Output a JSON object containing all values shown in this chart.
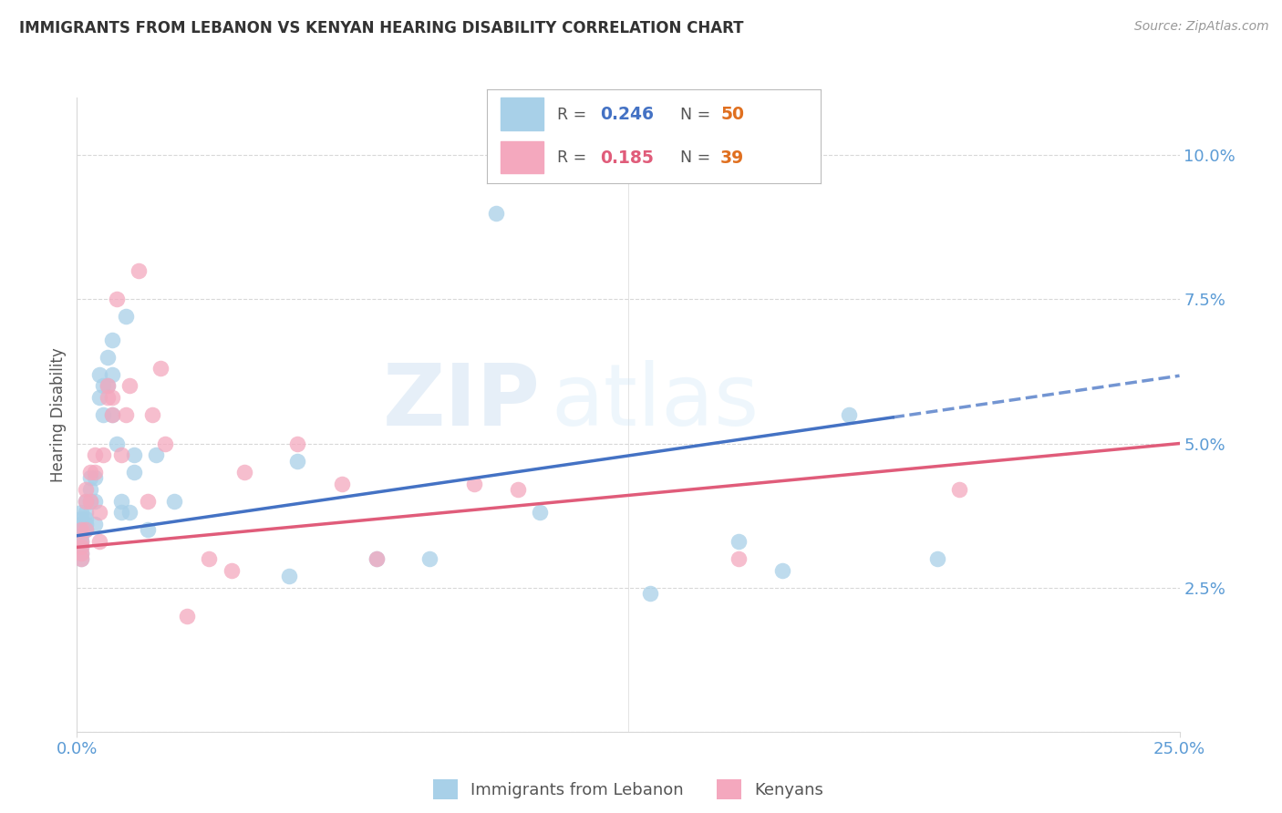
{
  "title": "IMMIGRANTS FROM LEBANON VS KENYAN HEARING DISABILITY CORRELATION CHART",
  "source": "Source: ZipAtlas.com",
  "ylabel": "Hearing Disability",
  "xlim": [
    0.0,
    0.25
  ],
  "ylim": [
    0.0,
    0.11
  ],
  "color_blue": "#a8d0e8",
  "color_pink": "#f4a8be",
  "color_blue_line": "#4472c4",
  "color_pink_line": "#e05c7a",
  "color_axis_labels": "#5b9bd5",
  "color_grid": "#d8d8d8",
  "watermark_line1": "ZIP",
  "watermark_line2": "atlas",
  "R_lebanon": "0.246",
  "N_lebanon": "50",
  "R_kenyan": "0.185",
  "N_kenyan": "39",
  "legend_bottom_label1": "Immigrants from Lebanon",
  "legend_bottom_label2": "Kenyans",
  "y_ticks": [
    0.0,
    0.025,
    0.05,
    0.075,
    0.1
  ],
  "y_tick_labels": [
    "",
    "2.5%",
    "5.0%",
    "7.5%",
    "10.0%"
  ],
  "x_tick_left": "0.0%",
  "x_tick_right": "25.0%",
  "lebanon_x": [
    0.001,
    0.001,
    0.001,
    0.001,
    0.001,
    0.001,
    0.001,
    0.001,
    0.001,
    0.002,
    0.002,
    0.002,
    0.002,
    0.002,
    0.003,
    0.003,
    0.003,
    0.004,
    0.004,
    0.004,
    0.005,
    0.005,
    0.006,
    0.006,
    0.007,
    0.007,
    0.008,
    0.008,
    0.008,
    0.009,
    0.01,
    0.01,
    0.011,
    0.012,
    0.013,
    0.013,
    0.016,
    0.018,
    0.022,
    0.05,
    0.08,
    0.095,
    0.105,
    0.15,
    0.16,
    0.175,
    0.195,
    0.13,
    0.068,
    0.048
  ],
  "lebanon_y": [
    0.035,
    0.034,
    0.033,
    0.032,
    0.031,
    0.036,
    0.037,
    0.038,
    0.03,
    0.036,
    0.035,
    0.037,
    0.038,
    0.04,
    0.044,
    0.042,
    0.04,
    0.036,
    0.04,
    0.044,
    0.058,
    0.062,
    0.055,
    0.06,
    0.06,
    0.065,
    0.055,
    0.062,
    0.068,
    0.05,
    0.04,
    0.038,
    0.072,
    0.038,
    0.048,
    0.045,
    0.035,
    0.048,
    0.04,
    0.047,
    0.03,
    0.09,
    0.038,
    0.033,
    0.028,
    0.055,
    0.03,
    0.024,
    0.03,
    0.027
  ],
  "kenyan_x": [
    0.001,
    0.001,
    0.001,
    0.001,
    0.001,
    0.002,
    0.002,
    0.002,
    0.003,
    0.003,
    0.004,
    0.004,
    0.005,
    0.005,
    0.006,
    0.007,
    0.007,
    0.008,
    0.008,
    0.009,
    0.01,
    0.011,
    0.012,
    0.014,
    0.016,
    0.017,
    0.019,
    0.02,
    0.025,
    0.03,
    0.038,
    0.05,
    0.06,
    0.09,
    0.1,
    0.15,
    0.2,
    0.068,
    0.035
  ],
  "kenyan_y": [
    0.033,
    0.032,
    0.031,
    0.035,
    0.03,
    0.04,
    0.042,
    0.035,
    0.045,
    0.04,
    0.045,
    0.048,
    0.038,
    0.033,
    0.048,
    0.058,
    0.06,
    0.058,
    0.055,
    0.075,
    0.048,
    0.055,
    0.06,
    0.08,
    0.04,
    0.055,
    0.063,
    0.05,
    0.02,
    0.03,
    0.045,
    0.05,
    0.043,
    0.043,
    0.042,
    0.03,
    0.042,
    0.03,
    0.028
  ]
}
